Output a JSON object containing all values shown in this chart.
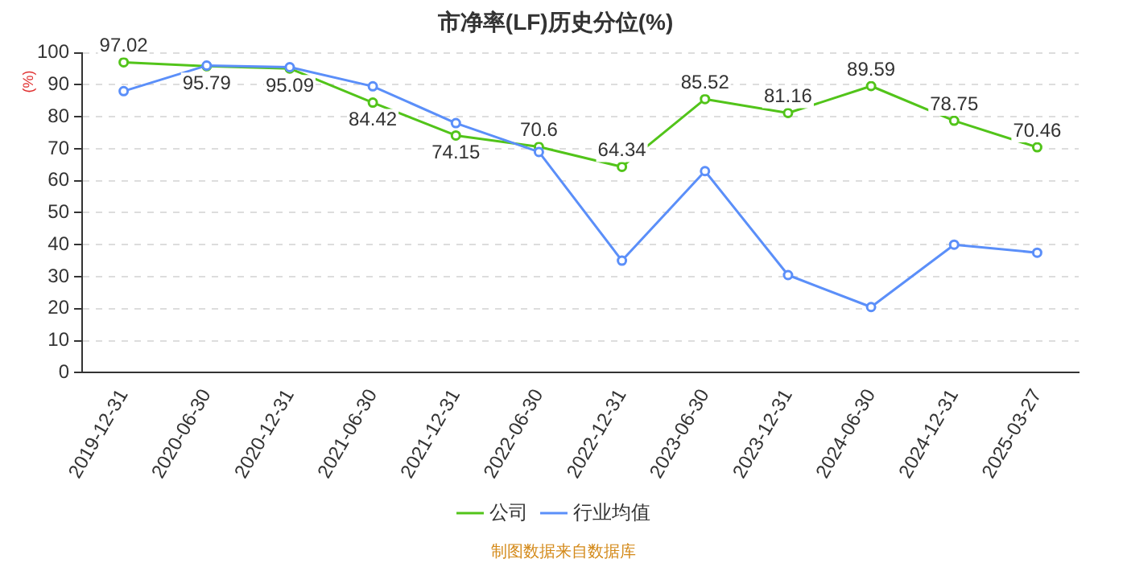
{
  "chart_data": {
    "type": "line",
    "title": "市净率(LF)历史分位(%)",
    "ylabel": "(%)",
    "categories": [
      "2019-12-31",
      "2020-06-30",
      "2020-12-31",
      "2021-06-30",
      "2021-12-31",
      "2022-06-30",
      "2022-12-31",
      "2023-06-30",
      "2023-12-31",
      "2024-06-30",
      "2024-12-31",
      "2025-03-27"
    ],
    "series": [
      {
        "name": "公司",
        "color": "#52c41a",
        "values": [
          97.02,
          95.79,
          95.09,
          84.42,
          74.15,
          70.6,
          64.34,
          85.52,
          81.16,
          89.59,
          78.75,
          70.46
        ],
        "value_labels": [
          "97.02",
          "95.79",
          "95.09",
          "84.42",
          "74.15",
          "70.6",
          "64.34",
          "85.52",
          "81.16",
          "89.59",
          "78.75",
          "70.46"
        ]
      },
      {
        "name": "行业均值",
        "color": "#5b8ff9",
        "values": [
          88,
          96,
          95.5,
          89.5,
          78,
          69,
          35,
          63,
          30.5,
          20.5,
          40,
          37.5
        ]
      }
    ],
    "ylim": [
      0,
      100
    ],
    "yticks": [
      0,
      10,
      20,
      30,
      40,
      50,
      60,
      70,
      80,
      90,
      100
    ],
    "grid": "y",
    "legend": "bottom",
    "marker": "circle",
    "line_style": "solid",
    "annotations": [
      "制图数据来自数据库"
    ]
  }
}
